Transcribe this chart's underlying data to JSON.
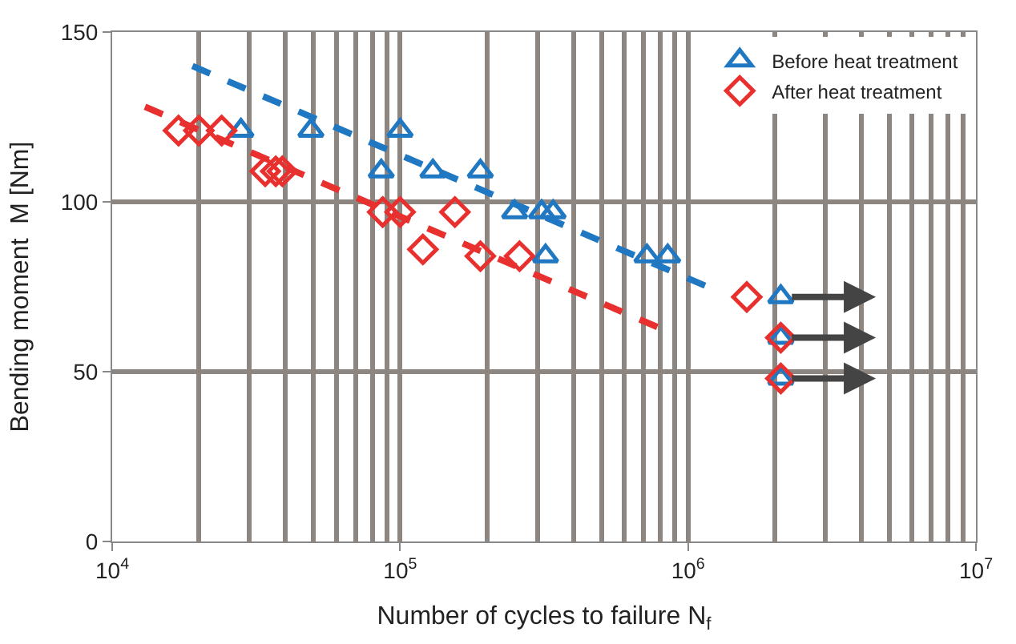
{
  "chart_data": {
    "type": "scatter",
    "xlabel": "Number of cycles to failure N$_{f}$",
    "ylabel": "Bending moment  M [Nm]",
    "log": "x",
    "xlim": [
      10000,
      10000000
    ],
    "xticks": [
      {
        "value": 10000,
        "label": "10$^{4}$"
      },
      {
        "value": 100000,
        "label": "10$^{5}$"
      },
      {
        "value": 1000000,
        "label": "10$^{6}$"
      },
      {
        "value": 10000000,
        "label": "10$^{7}$"
      }
    ],
    "ylim": [
      0,
      150
    ],
    "yticks": [
      0,
      50,
      100,
      150
    ],
    "grid": true,
    "legend": "top right",
    "series": [
      {
        "name": "Before heat treatment",
        "color": "#1f78c1",
        "marker": "triangle",
        "x": [
          28000,
          49000,
          100000,
          86000,
          130000,
          190000,
          250000,
          310000,
          340000,
          320000,
          720000,
          850000,
          2100000,
          2100000,
          2100000
        ],
        "values": [
          121,
          121,
          121,
          109,
          109,
          109,
          97,
          97,
          97,
          84,
          84,
          84,
          72,
          60,
          48
        ]
      },
      {
        "name": "After heat treatment",
        "color": "#e8312f",
        "marker": "diamond",
        "x": [
          17000,
          20000,
          24000,
          34000,
          37000,
          39000,
          87000,
          100000,
          155000,
          120000,
          190000,
          260000,
          1600000,
          2100000,
          2100000
        ],
        "values": [
          121,
          121,
          121,
          109,
          109,
          109,
          97,
          97,
          97,
          86,
          84,
          84,
          72,
          60,
          48
        ]
      },
      {
        "type": "line",
        "color": "#1f78c1",
        "line_style": "dashed",
        "x": [
          19000,
          1170000
        ],
        "values": [
          140,
          75
        ]
      },
      {
        "type": "line",
        "color": "#e8312f",
        "line_style": "dashed",
        "x": [
          13000,
          790000
        ],
        "values": [
          128,
          63
        ]
      }
    ]
  }
}
